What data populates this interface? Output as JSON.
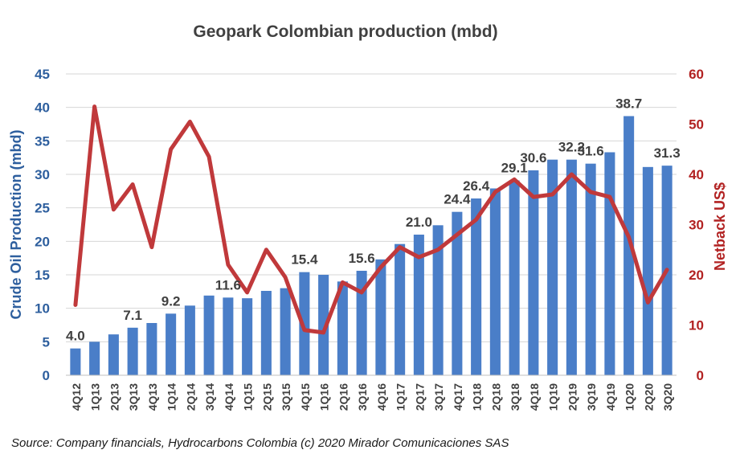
{
  "chart_data": {
    "type": "bar",
    "title": "Geopark Colombian production (mbd)",
    "ylabel": "Crude Oil Production (mbd)",
    "y2label": "Netback US$",
    "ylim": [
      0,
      45
    ],
    "y2lim": [
      0,
      60
    ],
    "yticks": [
      0,
      5,
      10,
      15,
      20,
      25,
      30,
      35,
      40,
      45
    ],
    "y2ticks": [
      0,
      10,
      20,
      30,
      40,
      50,
      60
    ],
    "grid": true,
    "categories": [
      "4Q12",
      "1Q13",
      "2Q13",
      "3Q13",
      "4Q13",
      "1Q14",
      "2Q14",
      "3Q14",
      "4Q14",
      "1Q15",
      "2Q15",
      "3Q15",
      "4Q15",
      "1Q16",
      "2Q16",
      "3Q16",
      "4Q16",
      "1Q17",
      "2Q17",
      "3Q17",
      "4Q17",
      "1Q18",
      "2Q18",
      "3Q18",
      "4Q18",
      "1Q19",
      "2Q19",
      "3Q19",
      "4Q19",
      "1Q20",
      "2Q20",
      "3Q20"
    ],
    "series": [
      {
        "name": "Crude Oil Production (mbd)",
        "kind": "bar",
        "axis": "left",
        "color": "#4a7ec8",
        "values": [
          4.0,
          5.0,
          6.1,
          7.1,
          7.8,
          9.2,
          10.4,
          11.9,
          11.6,
          11.5,
          12.6,
          13.0,
          15.4,
          15.0,
          14.0,
          15.6,
          17.3,
          19.6,
          21.0,
          22.4,
          24.4,
          26.4,
          27.9,
          29.1,
          30.6,
          32.2,
          32.2,
          31.6,
          33.3,
          38.7,
          31.1,
          31.3
        ]
      },
      {
        "name": "Netback US$",
        "kind": "line",
        "axis": "right",
        "color": "#c0393b",
        "values": [
          14.0,
          53.5,
          33.0,
          38.0,
          25.5,
          45.0,
          50.5,
          43.5,
          22.0,
          16.5,
          25.0,
          19.5,
          9.0,
          8.5,
          18.5,
          16.5,
          21.5,
          25.5,
          23.5,
          25.0,
          28.0,
          31.0,
          36.5,
          39.0,
          35.5,
          36.0,
          40.0,
          36.5,
          35.5,
          27.5,
          14.5,
          21.0
        ]
      }
    ],
    "data_labels": [
      {
        "index": 0,
        "text": "4.0"
      },
      {
        "index": 3,
        "text": "7.1"
      },
      {
        "index": 5,
        "text": "9.2"
      },
      {
        "index": 8,
        "text": "11.6"
      },
      {
        "index": 12,
        "text": "15.4"
      },
      {
        "index": 15,
        "text": "15.6"
      },
      {
        "index": 18,
        "text": "21.0"
      },
      {
        "index": 20,
        "text": "24.4"
      },
      {
        "index": 21,
        "text": "26.4"
      },
      {
        "index": 23,
        "text": "29.1"
      },
      {
        "index": 24,
        "text": "30.6"
      },
      {
        "index": 26,
        "text": "32.2"
      },
      {
        "index": 27,
        "text": "31.6"
      },
      {
        "index": 29,
        "text": "38.7"
      },
      {
        "index": 31,
        "text": "31.3"
      }
    ],
    "colors": {
      "left_axis": "#2e5f9e",
      "right_axis": "#b22222",
      "grid": "#d6d6d6",
      "text": "#404040"
    }
  },
  "source": "Source: Company financials, Hydrocarbons Colombia (c) 2020 Mirador Comunicaciones SAS"
}
